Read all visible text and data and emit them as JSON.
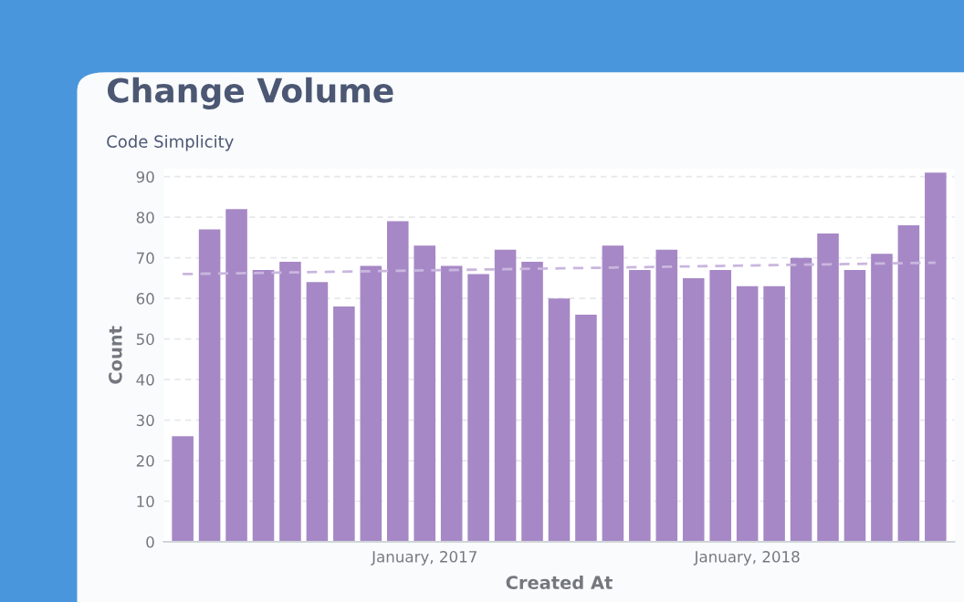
{
  "chart_data": {
    "type": "bar",
    "title": "Change Volume",
    "subtitle": "Code Simplicity",
    "xlabel": "Created At",
    "ylabel": "Count",
    "categories": [
      null,
      null,
      null,
      null,
      null,
      null,
      null,
      null,
      null,
      "January, 2017",
      null,
      null,
      null,
      null,
      null,
      null,
      null,
      null,
      null,
      null,
      null,
      "January, 2018",
      null,
      null,
      null,
      null,
      null,
      null,
      null
    ],
    "series": [
      {
        "color": "#a688c6",
        "values": [
          26,
          77,
          82,
          67,
          69,
          64,
          58,
          68,
          79,
          73,
          68,
          66,
          72,
          69,
          60,
          56,
          73,
          67,
          72,
          65,
          67,
          63,
          63,
          70,
          76,
          67,
          71,
          78,
          91
        ]
      },
      {
        "type": "line",
        "color": "#c9b6de",
        "line_style": "dashed",
        "values": [
          66.0,
          66.1,
          66.2,
          66.3,
          66.4,
          66.5,
          66.6,
          66.7,
          66.8,
          66.9,
          67.0,
          67.1,
          67.2,
          67.3,
          67.4,
          67.5,
          67.6,
          67.7,
          67.8,
          67.9,
          68.0,
          68.1,
          68.2,
          68.3,
          68.4,
          68.5,
          68.6,
          68.7,
          68.8
        ]
      }
    ],
    "ylim": [
      0,
      92
    ],
    "yticks": [
      0,
      10,
      20,
      30,
      40,
      50,
      60,
      70,
      80,
      90
    ],
    "grid": "y"
  }
}
